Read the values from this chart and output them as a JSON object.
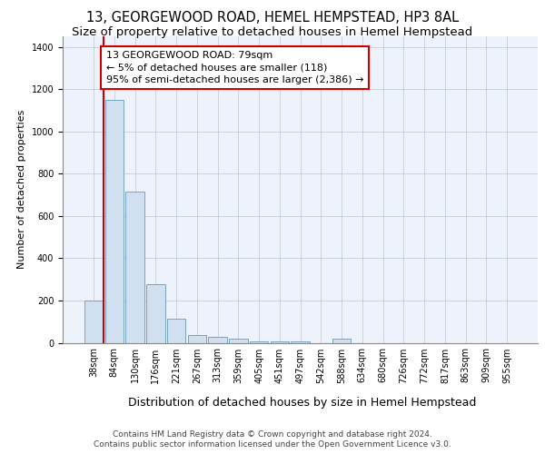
{
  "title": "13, GEORGEWOOD ROAD, HEMEL HEMPSTEAD, HP3 8AL",
  "subtitle": "Size of property relative to detached houses in Hemel Hempstead",
  "xlabel": "Distribution of detached houses by size in Hemel Hempstead",
  "ylabel": "Number of detached properties",
  "categories": [
    "38sqm",
    "84sqm",
    "130sqm",
    "176sqm",
    "221sqm",
    "267sqm",
    "313sqm",
    "359sqm",
    "405sqm",
    "451sqm",
    "497sqm",
    "542sqm",
    "588sqm",
    "634sqm",
    "680sqm",
    "726sqm",
    "772sqm",
    "817sqm",
    "863sqm",
    "909sqm",
    "955sqm"
  ],
  "values": [
    200,
    1150,
    715,
    275,
    112,
    37,
    30,
    18,
    8,
    8,
    5,
    0,
    20,
    0,
    0,
    0,
    0,
    0,
    0,
    0,
    0
  ],
  "bar_color": "#d0e0f0",
  "bar_edge_color": "#6699bb",
  "property_line_color": "#cc0000",
  "property_line_x": 0.5,
  "annotation_text": "13 GEORGEWOOD ROAD: 79sqm\n← 5% of detached houses are smaller (118)\n95% of semi-detached houses are larger (2,386) →",
  "annotation_box_color": "#cc0000",
  "ylim": [
    0,
    1450
  ],
  "yticks": [
    0,
    200,
    400,
    600,
    800,
    1000,
    1200,
    1400
  ],
  "background_color": "#eef2fb",
  "grid_color": "#b0bcd0",
  "footer_line1": "Contains HM Land Registry data © Crown copyright and database right 2024.",
  "footer_line2": "Contains public sector information licensed under the Open Government Licence v3.0.",
  "title_fontsize": 10.5,
  "subtitle_fontsize": 9.5,
  "xlabel_fontsize": 9,
  "ylabel_fontsize": 8,
  "tick_fontsize": 7,
  "annotation_fontsize": 8,
  "footer_fontsize": 6.5
}
